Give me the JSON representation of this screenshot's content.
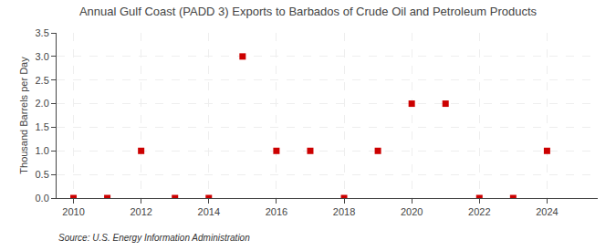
{
  "chart_data": {
    "type": "scatter",
    "title": "Annual Gulf Coast (PADD 3) Exports to Barbados of Crude Oil and Petroleum Products",
    "ylabel": "Thousand Barrels per Day",
    "annotations": [
      "Source: U.S. Energy Information Administration"
    ],
    "x": [
      2010,
      2011,
      2012,
      2013,
      2014,
      2015,
      2016,
      2017,
      2018,
      2019,
      2020,
      2021,
      2022,
      2023,
      2024
    ],
    "values": [
      0.0,
      0.0,
      1.0,
      0.0,
      0.0,
      3.0,
      1.0,
      1.0,
      0.0,
      1.0,
      2.0,
      2.0,
      0.0,
      0.0,
      1.0
    ],
    "color": "#cc0000",
    "marker": "square",
    "xlim": [
      2009.5,
      2025.5
    ],
    "xticks": [
      2010,
      2012,
      2014,
      2016,
      2018,
      2020,
      2022,
      2024
    ],
    "ylim": [
      0.0,
      3.5
    ],
    "yticks": [
      {
        "value": 0.0,
        "label": "0.0"
      },
      0.5,
      {
        "value": 1.0,
        "label": "1.0"
      },
      1.5,
      {
        "value": 2.0,
        "label": "2.0"
      },
      2.5,
      {
        "value": 3.0,
        "label": "3.0"
      },
      3.5
    ],
    "grid": true
  }
}
